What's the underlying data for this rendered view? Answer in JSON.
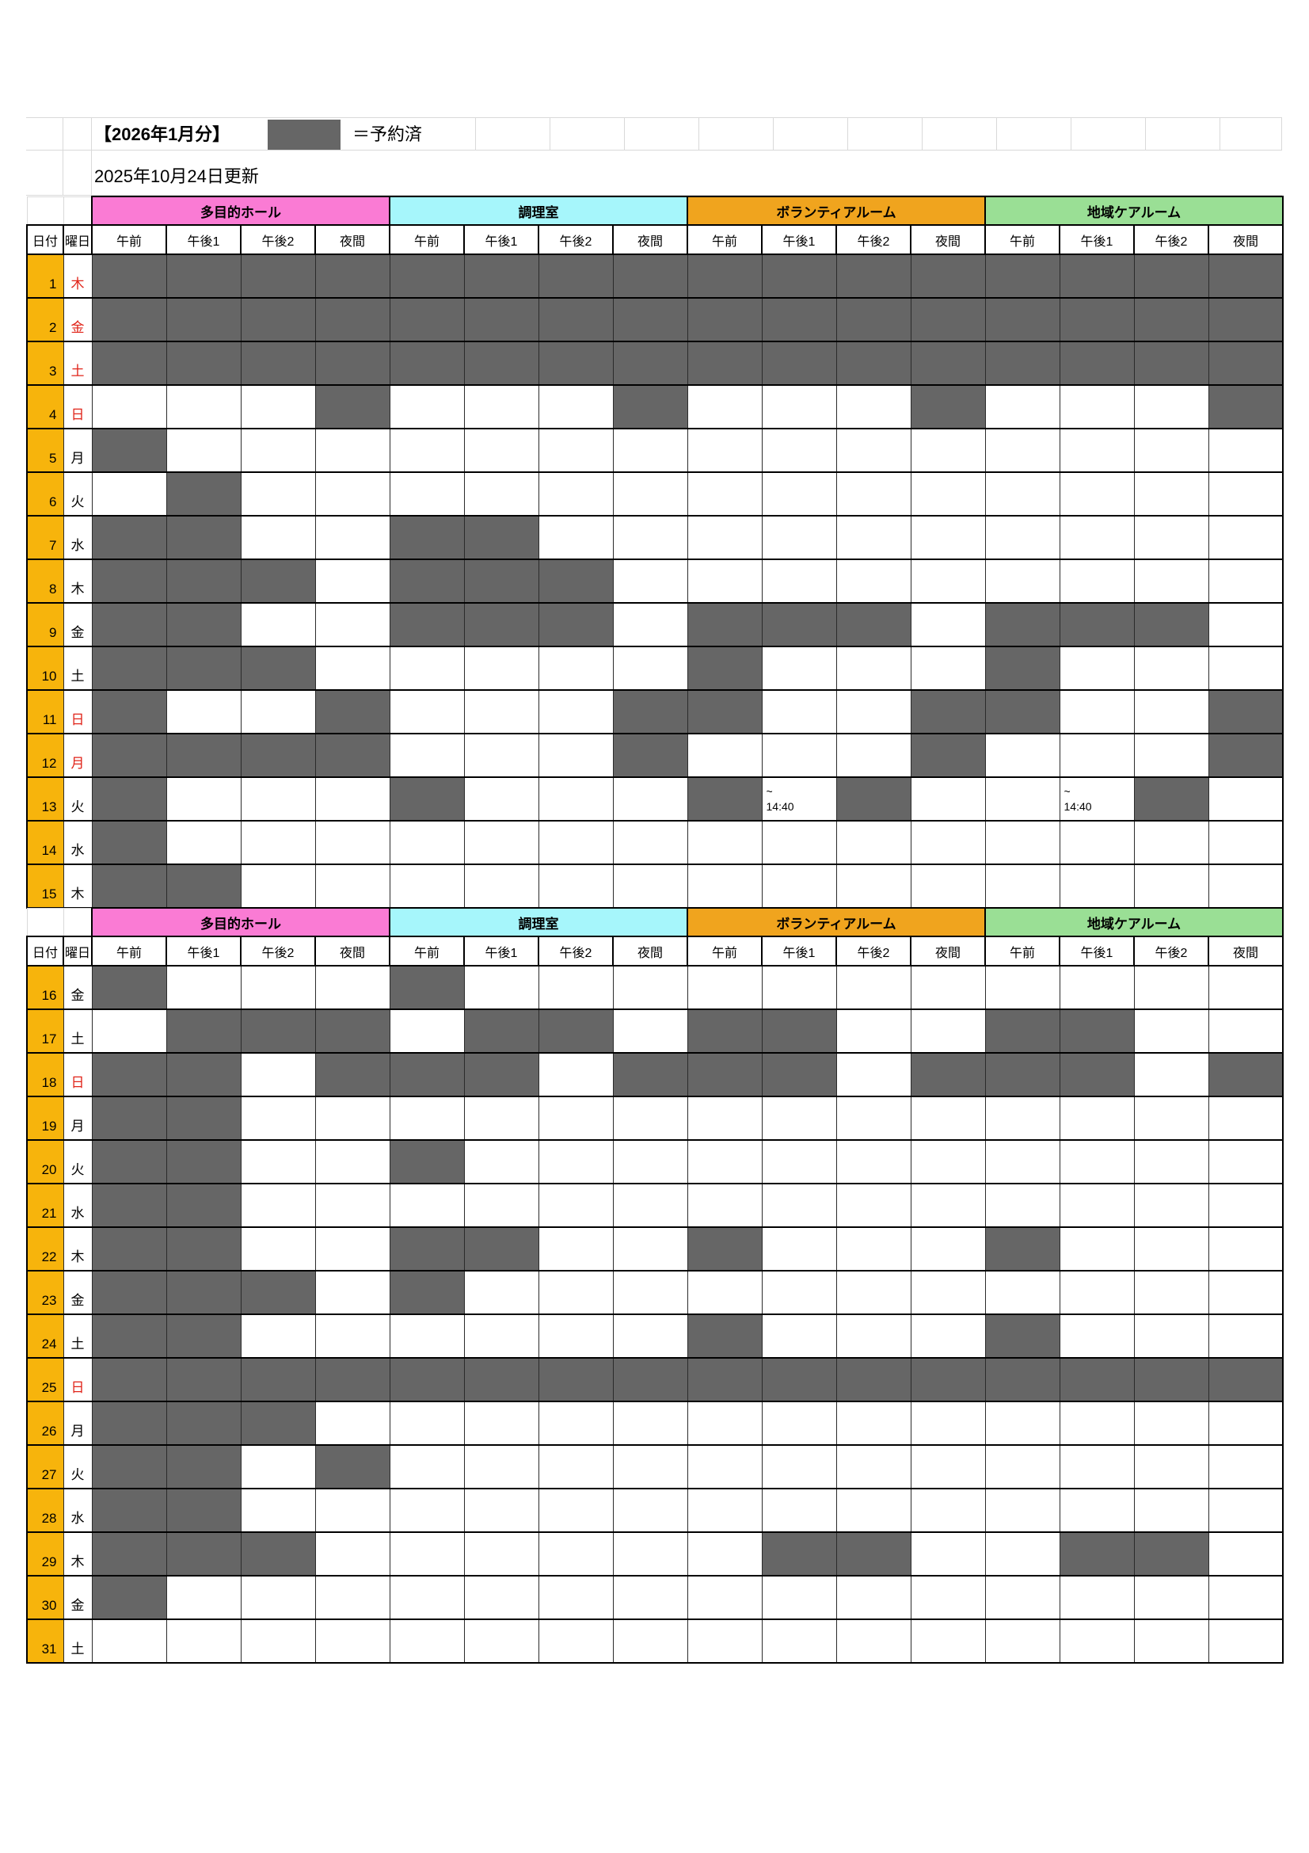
{
  "sheet": {
    "title": "【2026年1月分】",
    "legend_label": "＝予約済",
    "updated": "2025年10月24日更新"
  },
  "headers": {
    "date": "日付",
    "day": "曜日"
  },
  "facilities": [
    {
      "name": "多目的ホール",
      "color": "#FA7BD4"
    },
    {
      "name": "調理室",
      "color": "#A6F6FB"
    },
    {
      "name": "ボランティアルーム",
      "color": "#F0A41E"
    },
    {
      "name": "地域ケアルーム",
      "color": "#9ADF95"
    }
  ],
  "slots": [
    "午前",
    "午後1",
    "午後2",
    "夜間"
  ],
  "colors": {
    "reserved": "#666666",
    "date_cell": "#F7B40C",
    "holiday_text": "#E02318",
    "weekday_text": "#000000"
  },
  "note": {
    "line1": "~",
    "line2": "14:40"
  },
  "groups": [
    {
      "days": [
        {
          "date": 1,
          "day": "木",
          "red": true,
          "cells": "RRRRRRRRRRRRRRRR"
        },
        {
          "date": 2,
          "day": "金",
          "red": true,
          "cells": "RRRRRRRRRRRRRRRR"
        },
        {
          "date": 3,
          "day": "土",
          "red": true,
          "cells": "RRRRRRRRRRRRRRRR"
        },
        {
          "date": 4,
          "day": "日",
          "red": true,
          "cells": "...R...R...R...R"
        },
        {
          "date": 5,
          "day": "月",
          "red": false,
          "cells": "R..............."
        },
        {
          "date": 6,
          "day": "火",
          "red": false,
          "cells": ".R.............."
        },
        {
          "date": 7,
          "day": "水",
          "red": false,
          "cells": "RR..RR.........."
        },
        {
          "date": 8,
          "day": "木",
          "red": false,
          "cells": "RRR.RRR........."
        },
        {
          "date": 9,
          "day": "金",
          "red": false,
          "cells": "RR..RRR.RRR.RRR."
        },
        {
          "date": 10,
          "day": "土",
          "red": false,
          "cells": "RRR.....R...R..."
        },
        {
          "date": 11,
          "day": "日",
          "red": true,
          "cells": "R..R...RR..RR..R"
        },
        {
          "date": 12,
          "day": "月",
          "red": true,
          "cells": "RRRR...R...R...R"
        },
        {
          "date": 13,
          "day": "火",
          "red": false,
          "cells": "R...R...RNR..NR."
        },
        {
          "date": 14,
          "day": "水",
          "red": false,
          "cells": "R..............."
        },
        {
          "date": 15,
          "day": "木",
          "red": false,
          "cells": "RR.............."
        }
      ]
    },
    {
      "days": [
        {
          "date": 16,
          "day": "金",
          "red": false,
          "cells": "R...R..........."
        },
        {
          "date": 17,
          "day": "土",
          "red": false,
          "cells": ".RRR.RR.RR..RR.."
        },
        {
          "date": 18,
          "day": "日",
          "red": true,
          "cells": "RR.RRR.RRR.RRR.R"
        },
        {
          "date": 19,
          "day": "月",
          "red": false,
          "cells": "RR.............."
        },
        {
          "date": 20,
          "day": "火",
          "red": false,
          "cells": "RR..R..........."
        },
        {
          "date": 21,
          "day": "水",
          "red": false,
          "cells": "RR.............."
        },
        {
          "date": 22,
          "day": "木",
          "red": false,
          "cells": "RR..RR..R...R..."
        },
        {
          "date": 23,
          "day": "金",
          "red": false,
          "cells": "RRR.R..........."
        },
        {
          "date": 24,
          "day": "土",
          "red": false,
          "cells": "RR......R...R..."
        },
        {
          "date": 25,
          "day": "日",
          "red": true,
          "cells": "RRRRRRRRRRRRRRRR"
        },
        {
          "date": 26,
          "day": "月",
          "red": false,
          "cells": "RRR............."
        },
        {
          "date": 27,
          "day": "火",
          "red": false,
          "cells": "RR.R............"
        },
        {
          "date": 28,
          "day": "水",
          "red": false,
          "cells": "RR.............."
        },
        {
          "date": 29,
          "day": "木",
          "red": false,
          "cells": "RRR......RR..RR."
        },
        {
          "date": 30,
          "day": "金",
          "red": false,
          "cells": "R..............."
        },
        {
          "date": 31,
          "day": "土",
          "red": false,
          "cells": "................"
        }
      ]
    }
  ]
}
